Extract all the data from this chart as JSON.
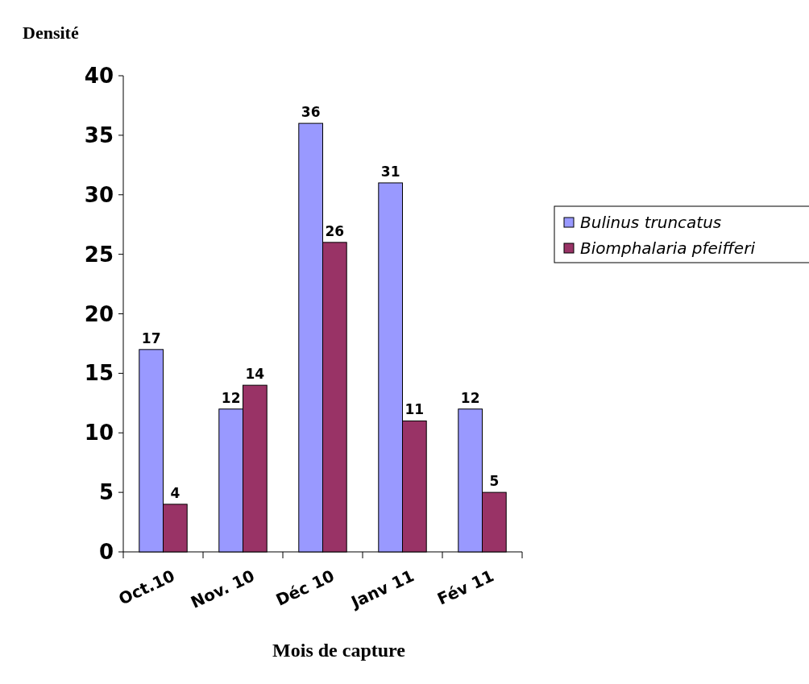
{
  "chart_data": {
    "type": "bar",
    "xlabel": "Mois de capture",
    "ylabel": "Densité",
    "categories": [
      "Oct.10",
      "Nov. 10",
      "Déc 10",
      "Janv 11",
      "Fév 11"
    ],
    "series": [
      {
        "name": "Bulinus truncatus",
        "color": "#9999ff",
        "values": [
          17,
          12,
          36,
          31,
          12
        ]
      },
      {
        "name": "Biomphalaria pfeifferi",
        "color": "#993366",
        "values": [
          4,
          14,
          26,
          11,
          5
        ]
      }
    ],
    "ylim": [
      0,
      40
    ],
    "yticks": [
      0,
      5,
      10,
      15,
      20,
      25,
      30,
      35,
      40
    ],
    "data_labels": true,
    "legend": "right",
    "grid": false
  }
}
